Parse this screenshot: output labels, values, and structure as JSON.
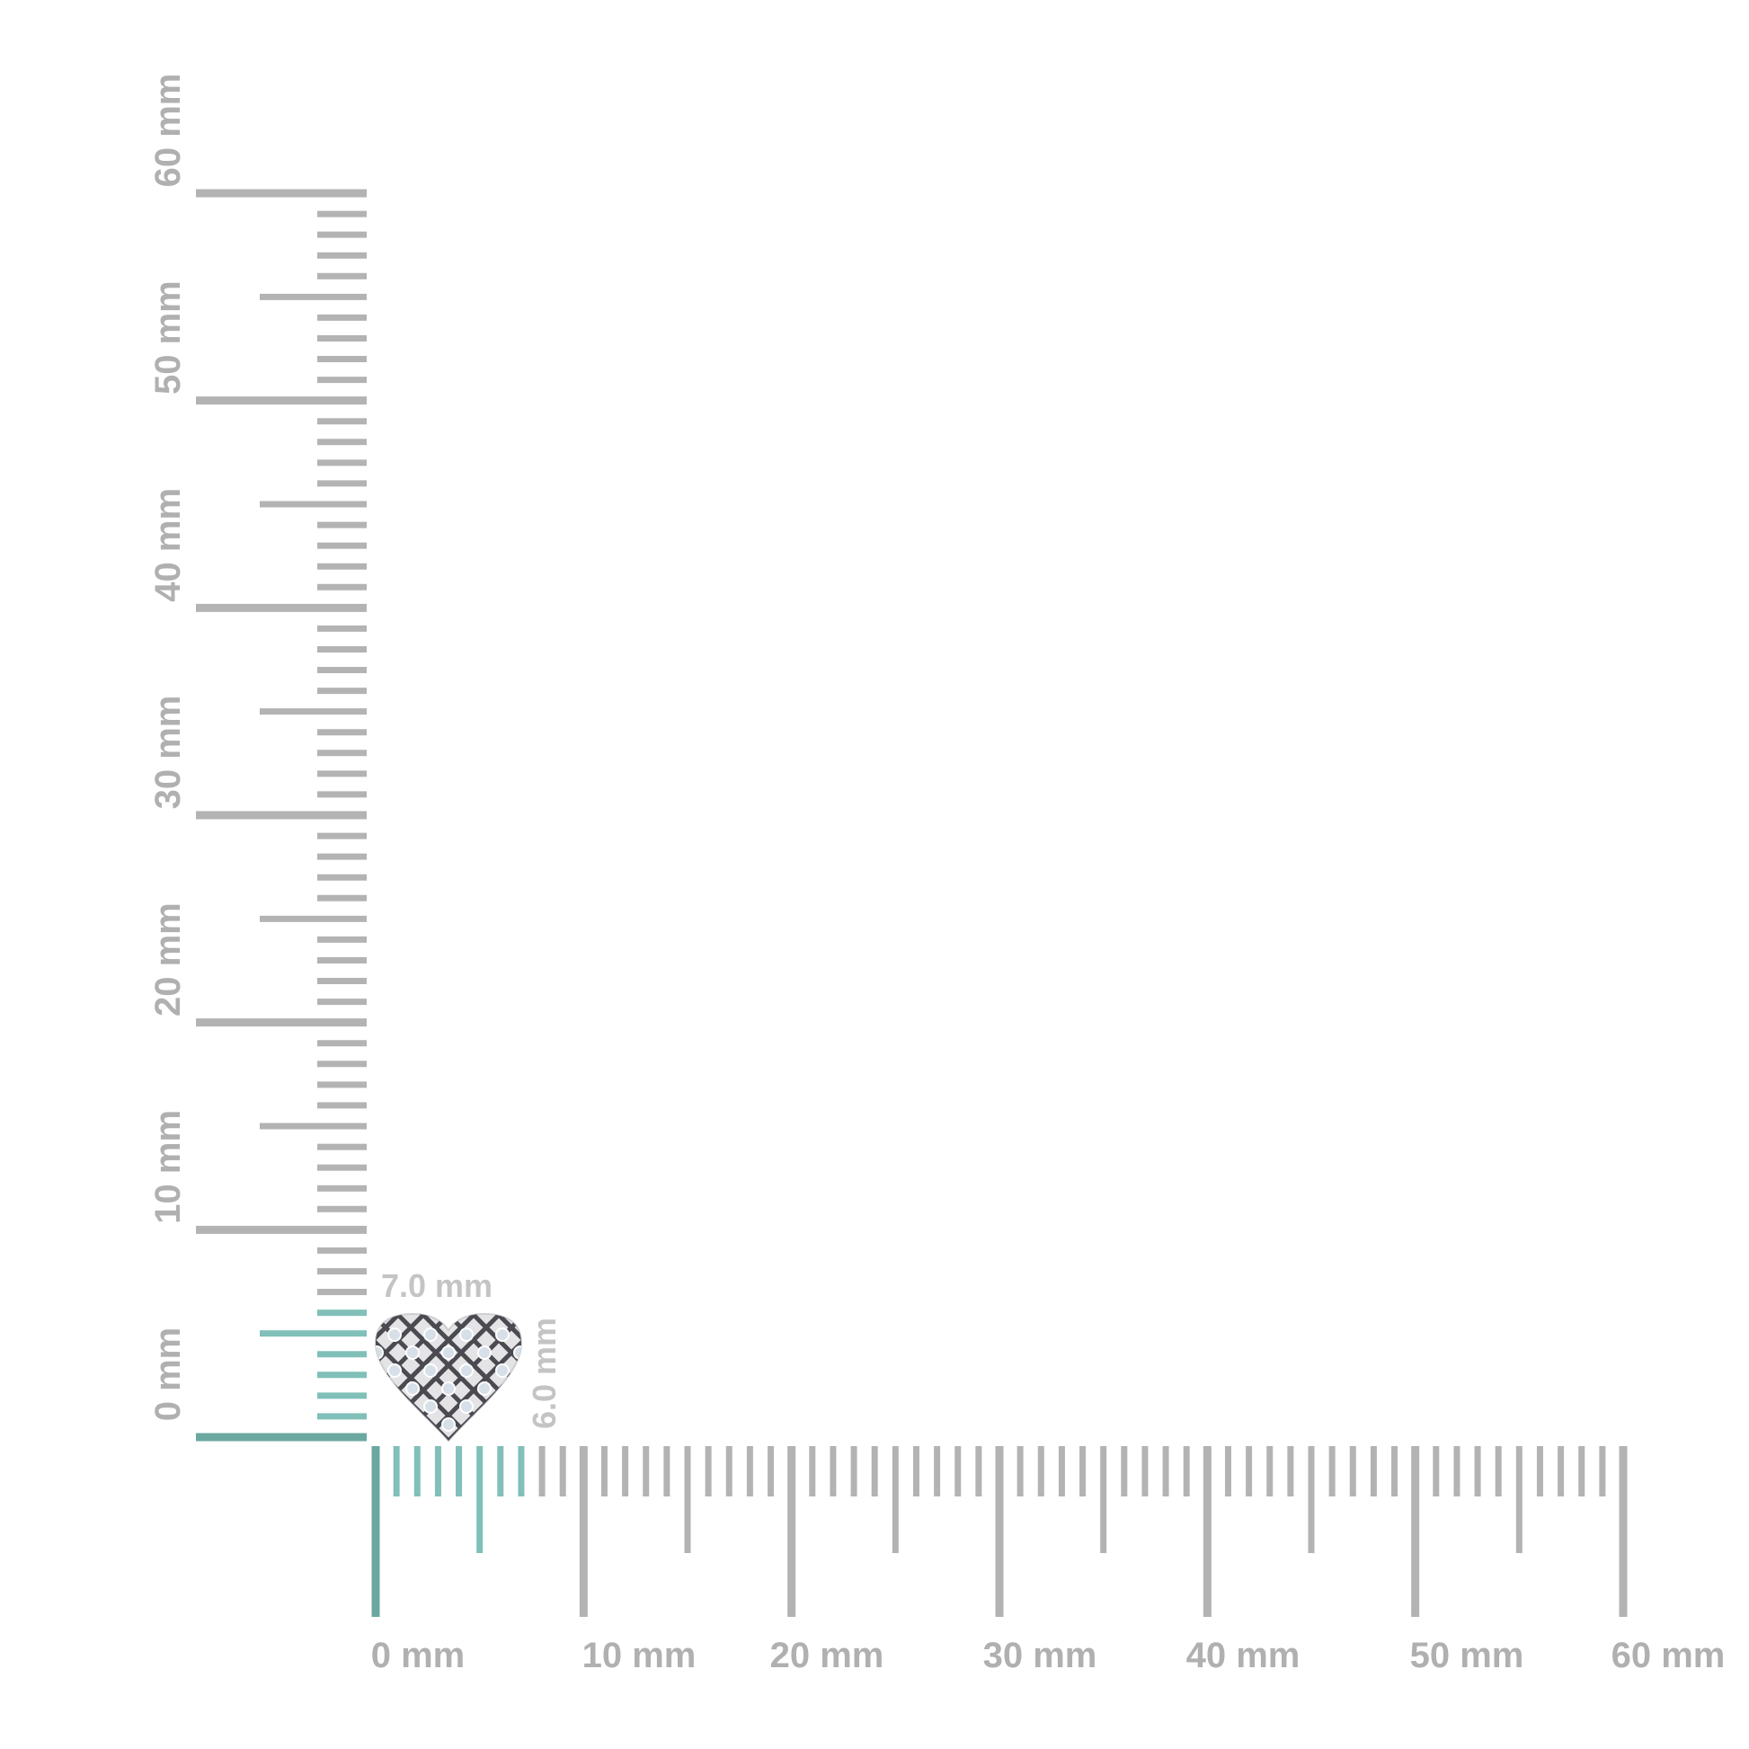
{
  "units": "mm",
  "horizontal_ruler": {
    "min": 0,
    "max": 60,
    "labels": [
      "0 mm",
      "10 mm",
      "20 mm",
      "30 mm",
      "40 mm",
      "50 mm",
      "60 mm"
    ],
    "highlight_to": 7
  },
  "vertical_ruler": {
    "min": 0,
    "max": 60,
    "labels": [
      "0 mm",
      "10 mm",
      "20 mm",
      "30 mm",
      "40 mm",
      "50 mm",
      "60 mm"
    ],
    "highlight_to": 6
  },
  "item": {
    "name": "heart-pave-earring",
    "width_label": "7.0 mm",
    "height_label": "6.0 mm",
    "width_mm": 7.0,
    "height_mm": 6.0
  },
  "colors": {
    "tick": "#b3b3b3",
    "highlight": "#80c0b9",
    "highlight_major": "#6aa8a0",
    "label": "#b0b0b0",
    "dim_label": "#c4c4c4",
    "metal": "#e4e4e6",
    "lattice": "#4a4a50"
  }
}
